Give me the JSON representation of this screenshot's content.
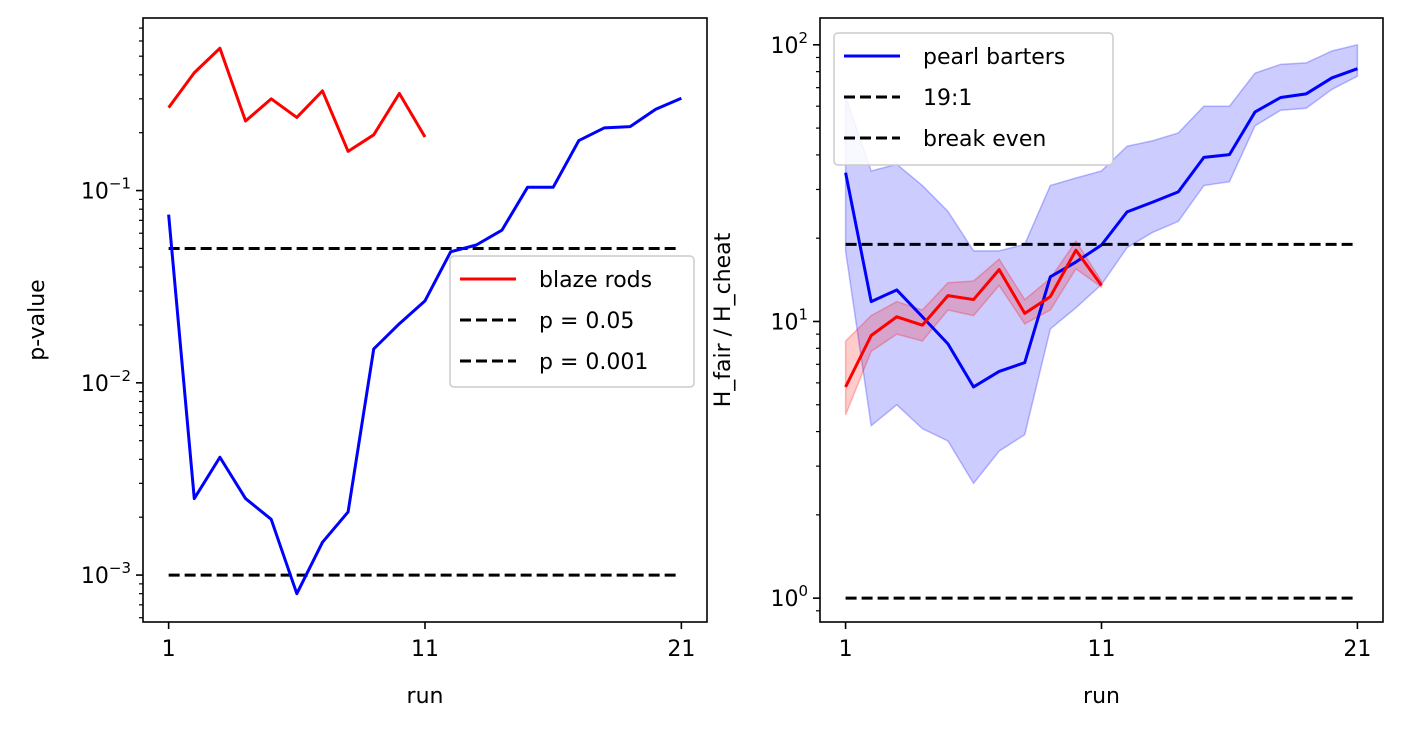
{
  "colors": {
    "red": "#ff0000",
    "blue": "#0000ff",
    "black": "#000000"
  },
  "chart_data": [
    {
      "type": "line",
      "xlabel": "run",
      "ylabel": "p-value",
      "yscale": "log",
      "xlim": [
        0,
        22
      ],
      "ylim": [
        0.00057,
        0.79
      ],
      "xticks": [
        {
          "value": 1,
          "label": "1"
        },
        {
          "value": 11,
          "label": "11"
        },
        {
          "value": 21,
          "label": "21"
        }
      ],
      "yticks": [
        {
          "value": 0.001,
          "base": "10",
          "exp": "−3"
        },
        {
          "value": 0.01,
          "base": "10",
          "exp": "−2"
        },
        {
          "value": 0.1,
          "base": "10",
          "exp": "−1"
        }
      ],
      "legend_position": "center-right",
      "series": [
        {
          "name": "blaze rods",
          "color": "#ff0000",
          "style": "solid",
          "x": [
            1,
            2,
            3,
            4,
            5,
            6,
            7,
            8,
            9,
            10,
            11
          ],
          "y": [
            0.27,
            0.41,
            0.55,
            0.23,
            0.3,
            0.24,
            0.33,
            0.16,
            0.195,
            0.32,
            0.19
          ]
        },
        {
          "name": "p = 0.05",
          "color": "#000000",
          "style": "dashed",
          "x": [
            1,
            20.9
          ],
          "y": [
            0.05,
            0.05
          ]
        },
        {
          "name": "p = 0.001",
          "color": "#000000",
          "style": "dashed",
          "x": [
            1,
            20.9
          ],
          "y": [
            0.001,
            0.001
          ]
        },
        {
          "color": "#0000ff",
          "style": "solid",
          "x": [
            1,
            2,
            3,
            4,
            5,
            6,
            7,
            8,
            9,
            10,
            11,
            12,
            13,
            14,
            15,
            16,
            17,
            18,
            19,
            20,
            21
          ],
          "y": [
            0.075,
            0.0025,
            0.0041,
            0.0025,
            0.00195,
            0.0008,
            0.00148,
            0.00213,
            0.015,
            0.0203,
            0.0267,
            0.048,
            0.0521,
            0.0622,
            0.104,
            0.104,
            0.182,
            0.212,
            0.215,
            0.265,
            0.302
          ]
        }
      ]
    },
    {
      "type": "line",
      "xlabel": "run",
      "ylabel": "H_fair / H_cheat",
      "yscale": "log",
      "xlim": [
        0,
        22
      ],
      "ylim": [
        0.82,
        125
      ],
      "xticks": [
        {
          "value": 1,
          "label": "1"
        },
        {
          "value": 11,
          "label": "11"
        },
        {
          "value": 21,
          "label": "21"
        }
      ],
      "yticks": [
        {
          "value": 1,
          "base": "10",
          "exp": "0"
        },
        {
          "value": 10,
          "base": "10",
          "exp": "1"
        },
        {
          "value": 100,
          "base": "10",
          "exp": "2"
        }
      ],
      "legend_position": "upper-left",
      "bands": [
        {
          "color": "#0000ff",
          "opacity": 0.2,
          "x": [
            1,
            2,
            3,
            4,
            5,
            6,
            7,
            8,
            9,
            10,
            11,
            12,
            13,
            14,
            15,
            16,
            17,
            18,
            19,
            20,
            21
          ],
          "lower": [
            18,
            4.2,
            5,
            4.1,
            3.7,
            2.6,
            3.4,
            3.9,
            9.4,
            11.2,
            13.6,
            18.5,
            21,
            23,
            31,
            32,
            51,
            58,
            59,
            69,
            77
          ],
          "upper": [
            65,
            35,
            37,
            31,
            25,
            18,
            18,
            19,
            31,
            33,
            35,
            43,
            45,
            48,
            60,
            60,
            79,
            85,
            86,
            95,
            100
          ]
        },
        {
          "color": "#ff0000",
          "opacity": 0.2,
          "x": [
            1,
            2,
            3,
            4,
            5,
            6,
            7,
            8,
            9,
            10,
            11
          ],
          "lower": [
            4.6,
            7.8,
            9,
            8.5,
            11,
            10.5,
            13.5,
            9.8,
            11,
            15.5,
            13.3
          ],
          "upper": [
            8.5,
            10.5,
            11.8,
            11,
            13.8,
            14,
            16.8,
            12,
            14.3,
            19.5,
            14
          ]
        }
      ],
      "series": [
        {
          "name": "pearl barters",
          "color": "#0000ff",
          "style": "solid",
          "x": [
            1,
            2,
            3,
            4,
            5,
            6,
            7,
            8,
            9,
            10,
            11,
            12,
            13,
            14,
            15,
            16,
            17,
            18,
            19,
            20,
            21
          ],
          "y": [
            34.5,
            11.8,
            13,
            10.4,
            8.3,
            5.8,
            6.6,
            7.1,
            14.5,
            16.4,
            18.9,
            24.9,
            27,
            29.4,
            39.2,
            40.1,
            57.2,
            64.5,
            66.5,
            75.9,
            82
          ]
        },
        {
          "name": "19:1",
          "color": "#000000",
          "style": "dashed",
          "x": [
            1,
            20.9
          ],
          "y": [
            19,
            19
          ]
        },
        {
          "name": "break even",
          "color": "#000000",
          "style": "dashed",
          "x": [
            1,
            20.9
          ],
          "y": [
            1,
            1
          ]
        },
        {
          "color": "#ff0000",
          "style": "solid",
          "x": [
            1,
            2,
            3,
            4,
            5,
            6,
            7,
            8,
            9,
            10,
            11
          ],
          "y": [
            5.8,
            8.9,
            10.4,
            9.7,
            12.4,
            12,
            15.4,
            10.7,
            12.3,
            18.1,
            13.5
          ]
        }
      ]
    }
  ]
}
